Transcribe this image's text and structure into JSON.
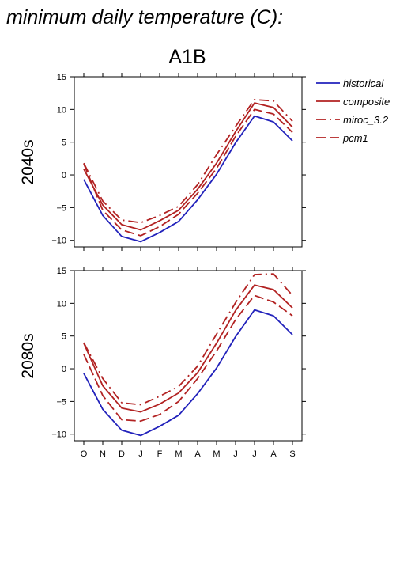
{
  "title": "minimum daily temperature (C):",
  "subtitle": "A1B",
  "chart_data": [
    {
      "type": "line",
      "row_label": "2040s",
      "categories": [
        "O",
        "N",
        "D",
        "J",
        "F",
        "M",
        "A",
        "M",
        "J",
        "J",
        "A",
        "S"
      ],
      "ylim": [
        -11,
        15
      ],
      "yticks": [
        "15",
        "10",
        "5",
        "0",
        "−5",
        "−10"
      ],
      "series": [
        {
          "name": "historical",
          "color": "#2222bb",
          "dash": "solid",
          "values": [
            -0.7,
            -6.2,
            -9.4,
            -10.2,
            -8.8,
            -7.1,
            -3.8,
            0.1,
            4.9,
            9.0,
            8.1,
            5.2
          ]
        },
        {
          "name": "composite",
          "color": "#b22222",
          "dash": "solid",
          "values": [
            0.9,
            -4.6,
            -7.6,
            -8.4,
            -7.0,
            -5.4,
            -2.2,
            1.8,
            6.6,
            11.0,
            10.3,
            7.3
          ]
        },
        {
          "name": "miroc_3.2",
          "color": "#b22222",
          "dash": "dashdot",
          "values": [
            1.8,
            -4.0,
            -6.9,
            -7.3,
            -6.2,
            -4.8,
            -1.5,
            3.1,
            7.4,
            11.5,
            11.3,
            8.2
          ]
        },
        {
          "name": "pcm1",
          "color": "#b22222",
          "dash": "dashed",
          "values": [
            1.7,
            -5.4,
            -8.4,
            -9.3,
            -7.9,
            -6.0,
            -2.8,
            1.0,
            5.9,
            10.0,
            9.3,
            6.5
          ]
        }
      ]
    },
    {
      "type": "line",
      "row_label": "2080s",
      "categories": [
        "O",
        "N",
        "D",
        "J",
        "F",
        "M",
        "A",
        "M",
        "J",
        "J",
        "A",
        "S"
      ],
      "ylim": [
        -11,
        15
      ],
      "yticks": [
        "15",
        "10",
        "5",
        "0",
        "−5",
        "−10"
      ],
      "series": [
        {
          "name": "historical",
          "color": "#2222bb",
          "dash": "solid",
          "values": [
            -0.7,
            -6.2,
            -9.4,
            -10.2,
            -8.8,
            -7.1,
            -3.8,
            0.1,
            4.9,
            9.0,
            8.1,
            5.2
          ]
        },
        {
          "name": "composite",
          "color": "#b22222",
          "dash": "solid",
          "values": [
            3.9,
            -2.6,
            -6.0,
            -6.6,
            -5.4,
            -3.7,
            -0.6,
            3.9,
            8.9,
            12.8,
            12.1,
            9.3
          ]
        },
        {
          "name": "miroc_3.2",
          "color": "#b22222",
          "dash": "dashdot",
          "values": [
            4.0,
            -1.5,
            -5.2,
            -5.5,
            -4.2,
            -2.7,
            0.4,
            5.3,
            10.1,
            14.4,
            14.5,
            11.2
          ]
        },
        {
          "name": "pcm1",
          "color": "#b22222",
          "dash": "dashed",
          "values": [
            2.2,
            -4.1,
            -7.8,
            -8.0,
            -7.0,
            -5.0,
            -1.5,
            2.7,
            7.5,
            11.2,
            10.2,
            8.1
          ]
        }
      ]
    }
  ],
  "legend": {
    "placement": "top-right",
    "items": [
      {
        "label": "historical",
        "color": "#2222bb",
        "dash": "solid"
      },
      {
        "label": "composite",
        "color": "#b22222",
        "dash": "solid"
      },
      {
        "label": "miroc_3.2",
        "color": "#b22222",
        "dash": "dashdot"
      },
      {
        "label": "pcm1",
        "color": "#b22222",
        "dash": "dashed"
      }
    ]
  }
}
